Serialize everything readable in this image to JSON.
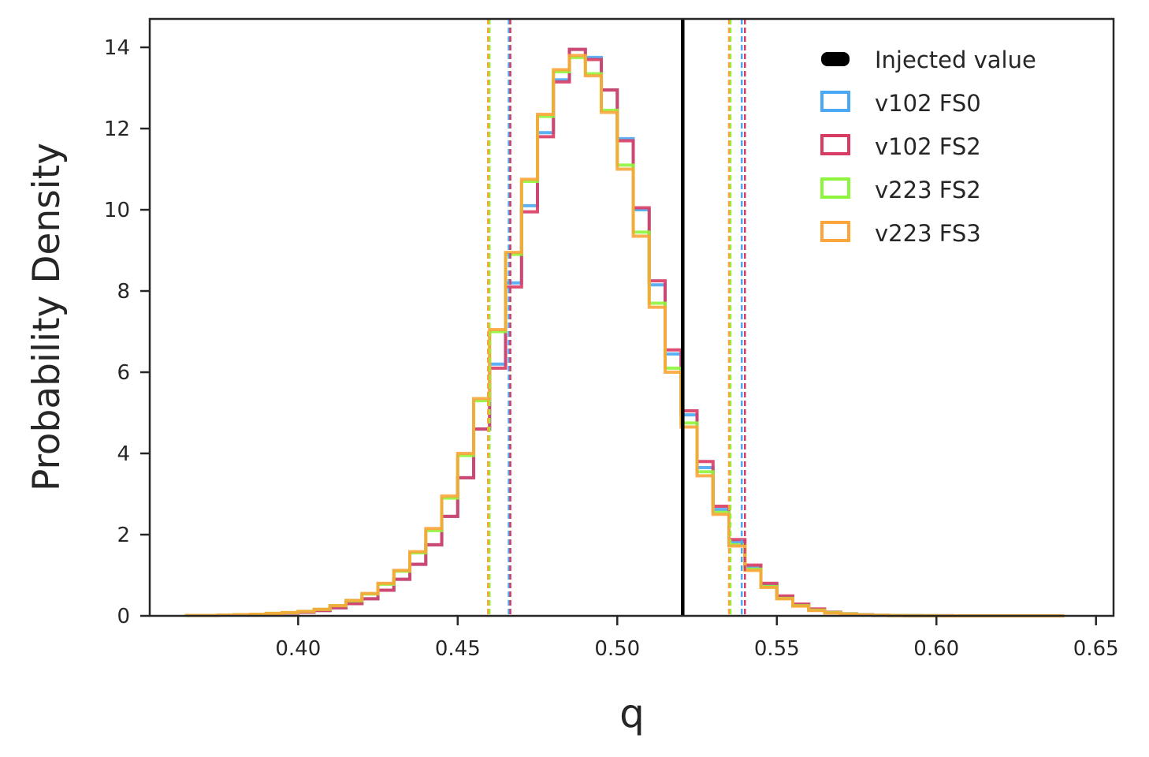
{
  "chart_data": {
    "type": "histogram",
    "xlabel": "q",
    "ylabel": "Probability Density",
    "xlim": [
      0.3535,
      0.6555
    ],
    "ylim": [
      0,
      14.7
    ],
    "x_ticks": [
      0.4,
      0.45,
      0.5,
      0.55,
      0.6,
      0.65
    ],
    "x_tick_labels": [
      "0.40",
      "0.45",
      "0.50",
      "0.55",
      "0.60",
      "0.65"
    ],
    "y_ticks": [
      0,
      2,
      4,
      6,
      8,
      10,
      12,
      14
    ],
    "y_tick_labels": [
      "0",
      "2",
      "4",
      "6",
      "8",
      "10",
      "12",
      "14"
    ],
    "legend_position": "top-right",
    "injected": {
      "label": "Injected value",
      "value": 0.5205,
      "color": "#000000"
    },
    "series": [
      {
        "name": "v102 FS0",
        "color": "#4aa8f5",
        "x_start": 0.365,
        "bin_width": 0.005,
        "densities": [
          0.01,
          0.01,
          0.02,
          0.03,
          0.03,
          0.05,
          0.07,
          0.09,
          0.13,
          0.2,
          0.3,
          0.42,
          0.63,
          0.9,
          1.27,
          1.75,
          2.45,
          3.4,
          4.6,
          6.2,
          8.2,
          10.1,
          11.9,
          13.2,
          13.95,
          13.75,
          12.95,
          11.75,
          10.0,
          8.15,
          6.45,
          4.95,
          3.65,
          2.62,
          1.82,
          1.2,
          0.76,
          0.46,
          0.27,
          0.15,
          0.08,
          0.045,
          0.025,
          0.01,
          0.01,
          0.005,
          0.003,
          0.002,
          0.001,
          0.001,
          0.001,
          0.0,
          0.0,
          0.0,
          0.0
        ],
        "cred_low": 0.466,
        "cred_high": 0.539
      },
      {
        "name": "v102 FS2",
        "color": "#d83c63",
        "x_start": 0.365,
        "bin_width": 0.005,
        "densities": [
          0.01,
          0.01,
          0.02,
          0.03,
          0.03,
          0.05,
          0.07,
          0.09,
          0.13,
          0.2,
          0.3,
          0.42,
          0.63,
          0.9,
          1.27,
          1.75,
          2.45,
          3.4,
          4.6,
          6.1,
          8.1,
          9.95,
          11.8,
          13.15,
          13.95,
          13.7,
          12.95,
          11.7,
          10.05,
          8.25,
          6.55,
          5.05,
          3.8,
          2.7,
          1.88,
          1.25,
          0.8,
          0.49,
          0.29,
          0.17,
          0.09,
          0.05,
          0.03,
          0.015,
          0.01,
          0.005,
          0.003,
          0.002,
          0.001,
          0.001,
          0.001,
          0.0,
          0.0,
          0.0,
          0.0
        ],
        "cred_low": 0.4665,
        "cred_high": 0.54
      },
      {
        "name": "v223 FS2",
        "color": "#8df53b",
        "x_start": 0.365,
        "bin_width": 0.005,
        "densities": [
          0.01,
          0.01,
          0.02,
          0.03,
          0.04,
          0.06,
          0.08,
          0.11,
          0.16,
          0.25,
          0.37,
          0.54,
          0.78,
          1.1,
          1.55,
          2.1,
          2.9,
          3.95,
          5.3,
          7.0,
          8.9,
          10.7,
          12.3,
          13.4,
          13.75,
          13.35,
          12.45,
          11.1,
          9.45,
          7.7,
          6.1,
          4.75,
          3.55,
          2.55,
          1.75,
          1.15,
          0.72,
          0.43,
          0.25,
          0.14,
          0.08,
          0.045,
          0.025,
          0.013,
          0.007,
          0.004,
          0.002,
          0.001,
          0.001,
          0.0,
          0.0,
          0.0,
          0.0,
          0.0,
          0.0
        ],
        "cred_low": 0.46,
        "cred_high": 0.5355
      },
      {
        "name": "v223 FS3",
        "color": "#fba53a",
        "x_start": 0.365,
        "bin_width": 0.005,
        "densities": [
          0.01,
          0.01,
          0.02,
          0.03,
          0.04,
          0.06,
          0.08,
          0.11,
          0.16,
          0.25,
          0.38,
          0.55,
          0.8,
          1.12,
          1.58,
          2.15,
          2.95,
          4.0,
          5.35,
          7.05,
          8.95,
          10.75,
          12.35,
          13.45,
          13.8,
          13.3,
          12.4,
          11.0,
          9.35,
          7.6,
          6.0,
          4.65,
          3.45,
          2.5,
          1.72,
          1.12,
          0.7,
          0.42,
          0.24,
          0.13,
          0.07,
          0.04,
          0.02,
          0.011,
          0.006,
          0.003,
          0.002,
          0.001,
          0.001,
          0.0,
          0.0,
          0.0,
          0.0,
          0.0,
          0.0
        ],
        "cred_low": 0.4595,
        "cred_high": 0.535
      }
    ]
  }
}
